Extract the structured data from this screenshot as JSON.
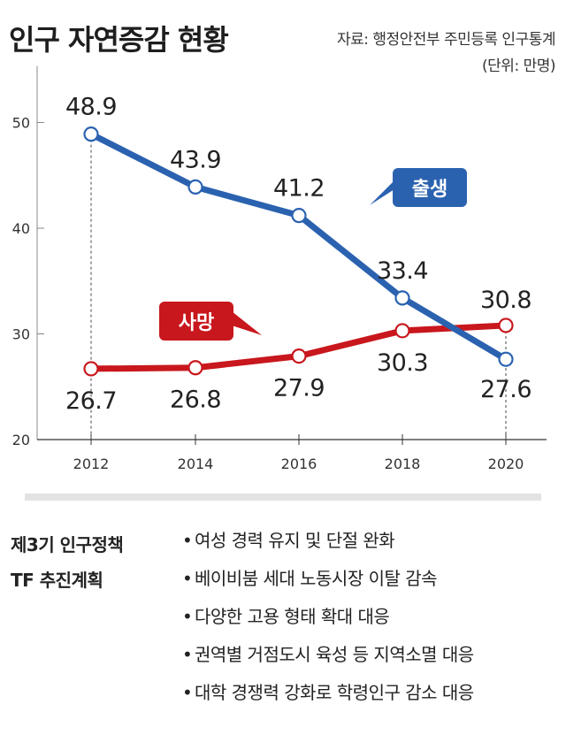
{
  "header": {
    "title": "인구 자연증감 현황",
    "source": "자료: 행정안전부 주민등록 인구통계",
    "unit": "(단위: 만명)"
  },
  "colors": {
    "birth": "#2b62b0",
    "death": "#c8171d",
    "grid": "#c8c8c8"
  },
  "chart_data": {
    "type": "line",
    "title": "인구 자연증감 현황",
    "ylabel": "만명",
    "xlabel": "",
    "ylim": [
      20,
      55
    ],
    "yticks": [
      20,
      30,
      40,
      50
    ],
    "categories": [
      "2012",
      "2014",
      "2016",
      "2018",
      "2020"
    ],
    "series": [
      {
        "name": "출생",
        "values": [
          48.9,
          43.9,
          41.2,
          33.4,
          27.6
        ],
        "labels": [
          "48.9",
          "43.9",
          "41.2",
          "33.4",
          "27.6"
        ]
      },
      {
        "name": "사망",
        "values": [
          26.7,
          26.8,
          27.9,
          30.3,
          30.8
        ],
        "labels": [
          "26.7",
          "26.8",
          "27.9",
          "30.3",
          "30.8"
        ]
      }
    ]
  },
  "plan": {
    "title_line1": "제3기 인구정책",
    "title_line2": "TF 추진계획",
    "bullet": "•",
    "items": [
      "여성 경력 유지 및 단절 완화",
      "베이비붐 세대 노동시장 이탈 감속",
      "다양한 고용 형태 확대 대응",
      "권역별 거점도시 육성 등 지역소멸 대응",
      "대학 경쟁력 강화로 학령인구 감소 대응"
    ]
  }
}
